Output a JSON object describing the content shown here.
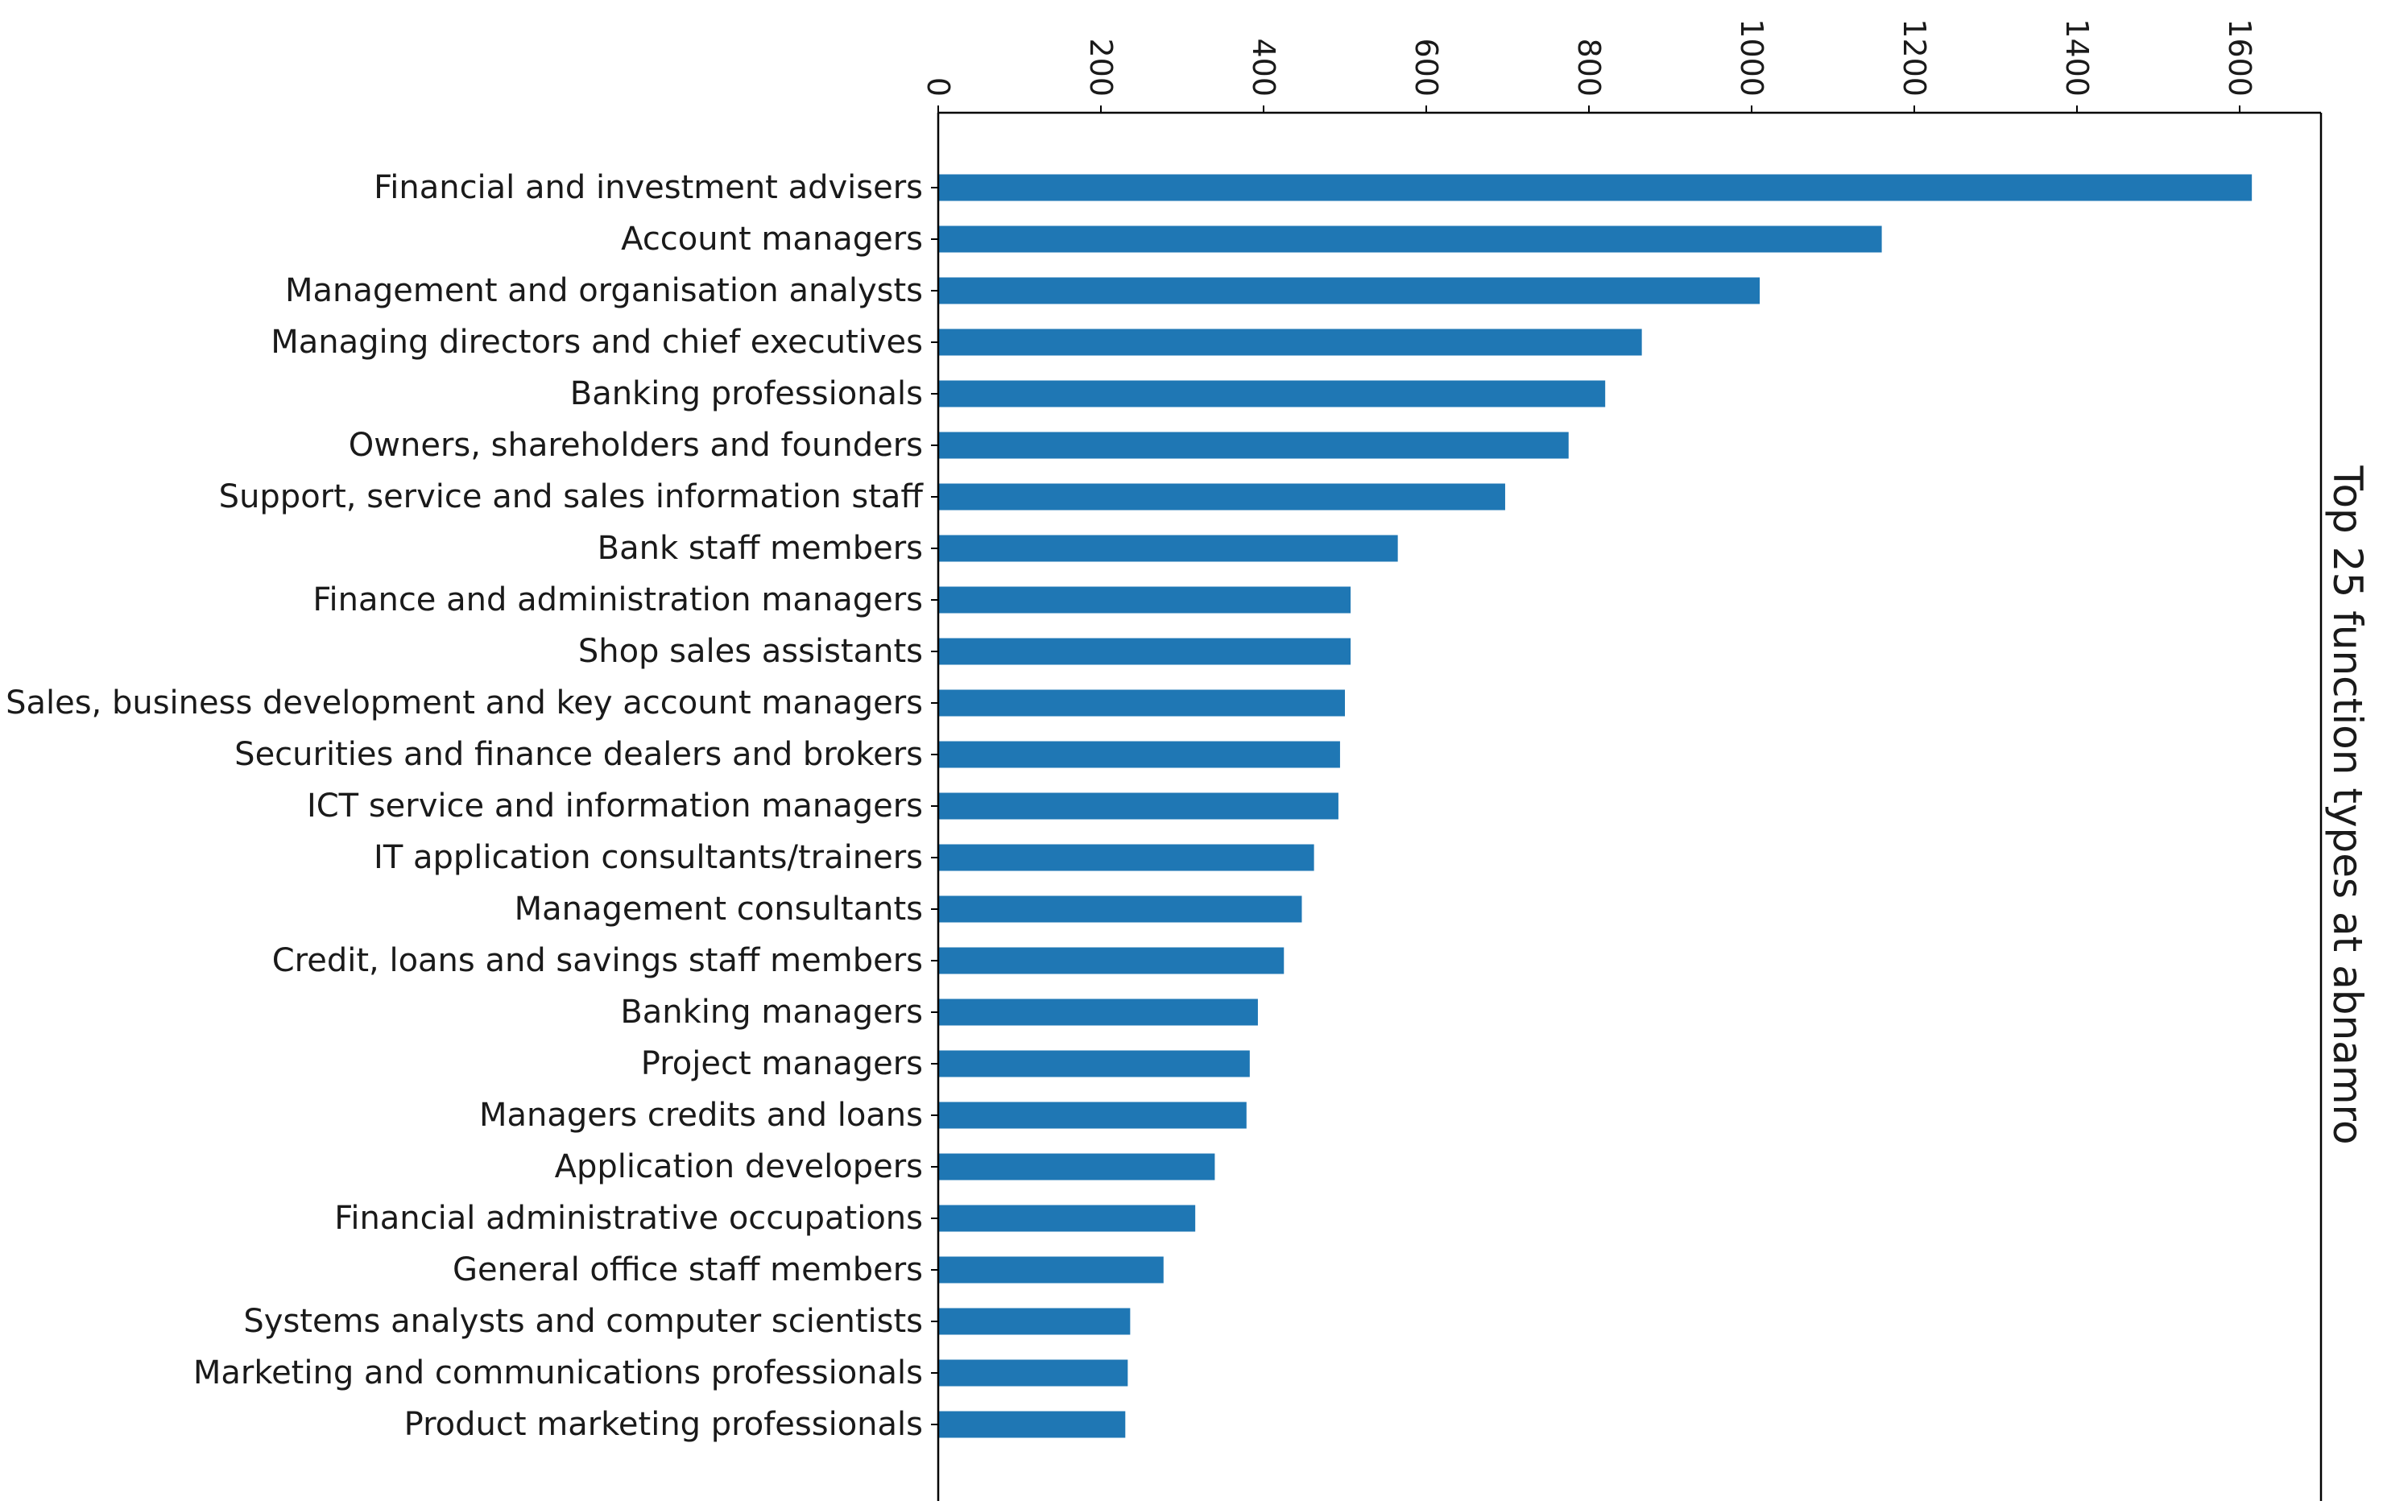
{
  "chart_data": {
    "type": "bar",
    "orientation": "horizontal",
    "title": "Top 25 function types at abnamro",
    "xlabel": "",
    "ylabel": "",
    "xlim": [
      0,
      1700
    ],
    "xticks": [
      0,
      200,
      400,
      600,
      800,
      1000,
      1200,
      1400,
      1600
    ],
    "xtick_labels": [
      "0",
      "200",
      "400",
      "600",
      "800",
      "1000",
      "1200",
      "1400",
      "1600"
    ],
    "x_axis_position": "top",
    "tick_label_rotation": 90,
    "title_position": "right",
    "grid": false,
    "bar_color": "#1f77b4",
    "categories": [
      "Financial and investment advisers",
      "Account managers",
      "Management and organisation analysts",
      "Managing directors and chief executives",
      "Banking professionals",
      "Owners, shareholders and founders",
      "Support, service and sales information staff",
      "Bank staff members",
      "Finance and administration managers",
      "Shop sales assistants",
      "Sales, business development and key account managers",
      "Securities and finance dealers and brokers",
      "ICT service and information managers",
      "IT application consultants/trainers",
      "Management consultants",
      "Credit, loans and savings staff members",
      "Banking managers",
      "Project managers",
      "Managers credits and loans",
      "Application developers",
      "Financial administrative occupations",
      "General office staff members",
      "Systems analysts and computer scientists",
      "Marketing and communications professionals",
      "Product marketing professionals"
    ],
    "values": [
      1615,
      1160,
      1010,
      865,
      820,
      775,
      697,
      565,
      507,
      507,
      500,
      494,
      492,
      462,
      447,
      425,
      393,
      383,
      379,
      340,
      316,
      277,
      236,
      233,
      230
    ]
  }
}
